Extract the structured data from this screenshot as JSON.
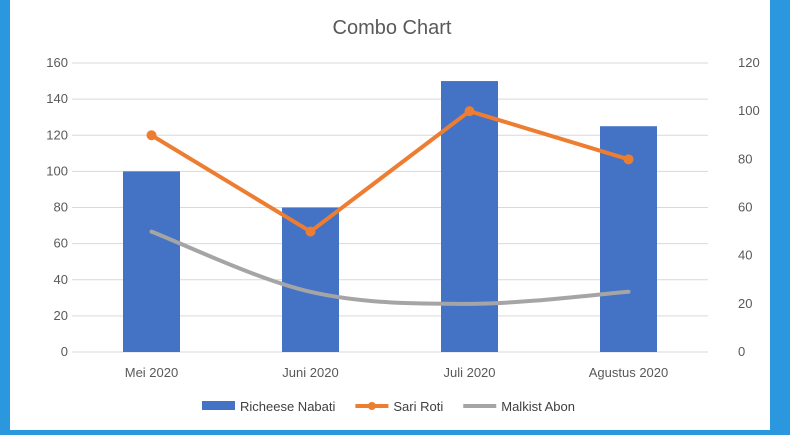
{
  "chart_data": {
    "type": "combo",
    "title": "Combo Chart",
    "categories": [
      "Mei 2020",
      "Juni 2020",
      "Juli 2020",
      "Agustus 2020"
    ],
    "series": [
      {
        "name": "Richeese Nabati",
        "type": "bar",
        "axis": "primary",
        "color": "#4472c4",
        "values": [
          100,
          80,
          150,
          125
        ]
      },
      {
        "name": "Sari Roti",
        "type": "line",
        "axis": "secondary",
        "color": "#ed7d31",
        "markers": true,
        "values": [
          90,
          50,
          100,
          80
        ]
      },
      {
        "name": "Malkist Abon",
        "type": "smooth-line",
        "axis": "secondary",
        "color": "#a5a5a5",
        "markers": false,
        "values": [
          50,
          25,
          20,
          25
        ]
      }
    ],
    "y_primary": {
      "min": 0,
      "max": 160,
      "step": 20,
      "ticks": [
        "0",
        "20",
        "40",
        "60",
        "80",
        "100",
        "120",
        "140",
        "160"
      ]
    },
    "y_secondary": {
      "min": 0,
      "max": 120,
      "step": 20,
      "ticks": [
        "0",
        "20",
        "40",
        "60",
        "80",
        "100",
        "120"
      ]
    },
    "grid": true,
    "legend": "bottom"
  },
  "colors": {
    "frame": "#2b97de",
    "gridline": "#d9d9d9",
    "text": "#595959"
  }
}
